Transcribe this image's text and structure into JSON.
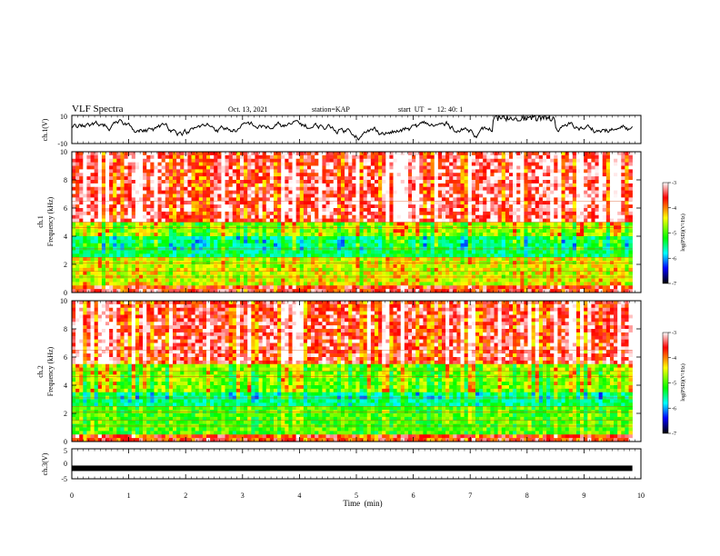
{
  "header": {
    "title": "VLF Spectra",
    "date": "Oct. 13, 2021",
    "station": "station=KAP",
    "start_time": "start  UT  =   12: 40: 1"
  },
  "chart_data": [
    {
      "type": "line",
      "panel": "ch1-waveform",
      "ylabel": "ch.1(V)",
      "ylim": [
        -10,
        10
      ],
      "ytick_labels": [
        "10",
        "-10"
      ],
      "xlim": [
        0,
        10
      ],
      "note_values": "voltage trace fluctuating roughly between -8 and +8 V, saturating near +10 V around 7.5-8.5 min"
    },
    {
      "type": "heatmap",
      "panel": "ch1-spectrogram",
      "ylabel": "ch.1\nFrequency (kHz)",
      "ylabel_line1": "ch.1",
      "ylabel_line2": "Frequency (kHz)",
      "ylim": [
        0,
        10
      ],
      "ytick_labels": [
        "0",
        "2",
        "4",
        "6",
        "8",
        "10"
      ],
      "xlim": [
        0,
        10
      ],
      "colorbar": {
        "label": "log(PSD)(V²/Hz)",
        "range": [
          -7,
          -3
        ],
        "tick_labels": [
          "-3",
          "-4",
          "-5",
          "-6",
          "-7"
        ],
        "colormap": [
          "#ffffff",
          "#ff0000",
          "#ffff00",
          "#00ff00",
          "#00ffff",
          "#0000ff",
          "#000000"
        ]
      },
      "bands": [
        {
          "from_khz": 5.0,
          "to_khz": 10.0,
          "level": -3.3
        },
        {
          "from_khz": 4.0,
          "to_khz": 5.0,
          "level": -4.5
        },
        {
          "from_khz": 2.5,
          "to_khz": 4.0,
          "level": -5.3
        },
        {
          "from_khz": 0.5,
          "to_khz": 2.5,
          "level": -4.3
        },
        {
          "from_khz": 0.0,
          "to_khz": 0.5,
          "level": -3.5
        }
      ]
    },
    {
      "type": "heatmap",
      "panel": "ch2-spectrogram",
      "ylabel_line1": "ch.2",
      "ylabel_line2": "Frequency (kHz)",
      "ylim": [
        0,
        10
      ],
      "ytick_labels": [
        "0",
        "2",
        "4",
        "6",
        "8",
        "10"
      ],
      "xlim": [
        0,
        10
      ],
      "colorbar": {
        "label": "log(PSD)(V²/Hz)",
        "range": [
          -7,
          -3
        ],
        "tick_labels": [
          "-3",
          "-4",
          "-5",
          "-6",
          "-7"
        ],
        "colormap": [
          "#ffffff",
          "#ff0000",
          "#ffff00",
          "#00ff00",
          "#00ffff",
          "#0000ff",
          "#000000"
        ]
      },
      "bands": [
        {
          "from_khz": 5.5,
          "to_khz": 10.0,
          "level": -3.4
        },
        {
          "from_khz": 3.5,
          "to_khz": 5.5,
          "level": -4.6
        },
        {
          "from_khz": 2.5,
          "to_khz": 3.5,
          "level": -5.4
        },
        {
          "from_khz": 0.5,
          "to_khz": 2.5,
          "level": -4.8
        },
        {
          "from_khz": 0.0,
          "to_khz": 0.5,
          "level": -3.6
        }
      ]
    },
    {
      "type": "line",
      "panel": "ch3-waveform",
      "ylabel": "ch.3(V)",
      "ylim": [
        -5,
        5
      ],
      "ytick_labels": [
        "5",
        "0",
        "-5"
      ],
      "xlim": [
        0,
        10
      ],
      "level_v": -1.5,
      "note_values": "thick near-constant trace around -1.5 V"
    }
  ],
  "xaxis": {
    "label": "Time  (min)",
    "tick_labels": [
      "0",
      "1",
      "2",
      "3",
      "4",
      "5",
      "6",
      "7",
      "8",
      "9",
      "10"
    ],
    "range": [
      0,
      10
    ],
    "data_end_min": 9.85
  }
}
